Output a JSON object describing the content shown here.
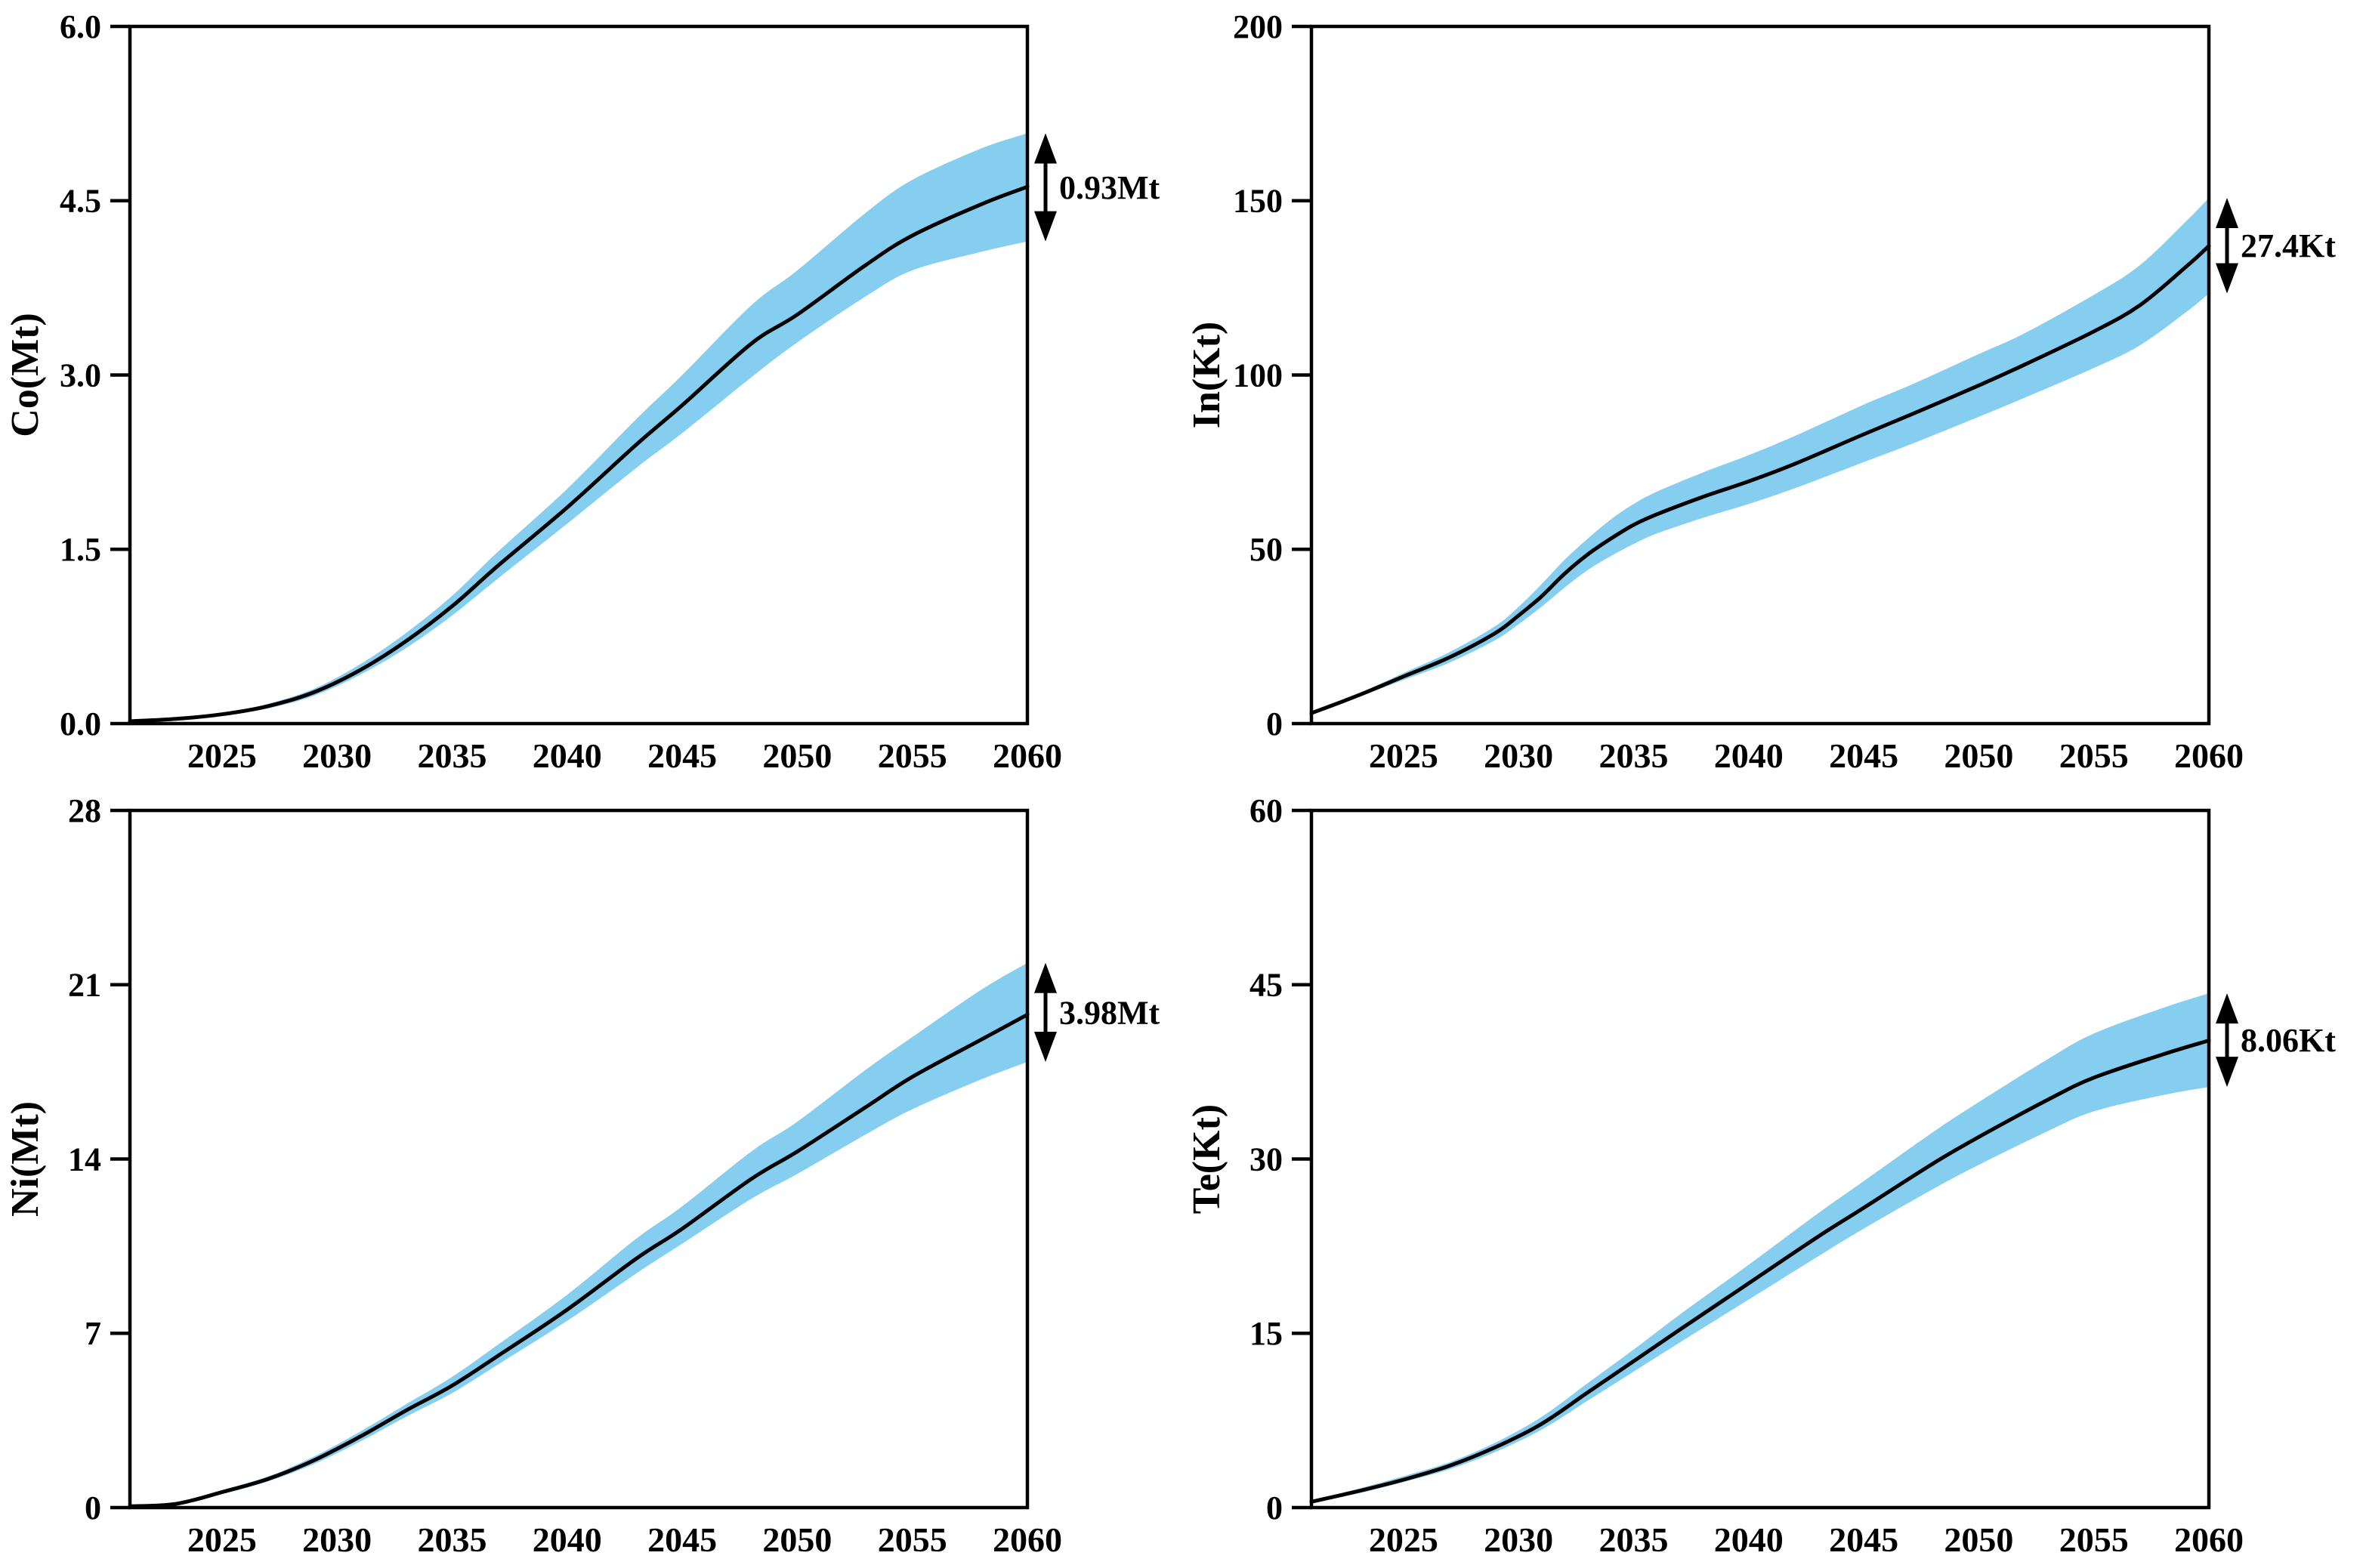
{
  "figure": {
    "kind": "2x2 panel projection figure",
    "background": "#ffffff"
  },
  "colors": {
    "band": "#86CEF0",
    "line": "#000000",
    "axis": "#000000",
    "text": "#000000"
  },
  "chart_data": [
    {
      "id": "co",
      "type": "area",
      "title": "",
      "xlabel": "",
      "ylabel": "Co(Mt)",
      "x_domain": [
        2021,
        2060
      ],
      "ylim": [
        0,
        6
      ],
      "grid": "off",
      "legend": "none",
      "yticks": [
        {
          "value": 0,
          "label": "0.0"
        },
        {
          "value": 1.5,
          "label": "1.5"
        },
        {
          "value": 3,
          "label": "3.0"
        },
        {
          "value": 4.5,
          "label": "4.5"
        },
        {
          "value": 6,
          "label": "6.0"
        }
      ],
      "xticks": [
        {
          "value": 2025,
          "label": "2025"
        },
        {
          "value": 2030,
          "label": "2030"
        },
        {
          "value": 2035,
          "label": "2035"
        },
        {
          "value": 2040,
          "label": "2040"
        },
        {
          "value": 2045,
          "label": "2045"
        },
        {
          "value": 2050,
          "label": "2050"
        },
        {
          "value": 2055,
          "label": "2055"
        },
        {
          "value": 2060,
          "label": "2060"
        }
      ],
      "annotation": {
        "label": "0.93Mt",
        "at_year": 2060,
        "low": 4.15,
        "high": 5.08
      },
      "series": [
        {
          "name": "uncertainty-band",
          "role": "band",
          "x": [
            2021,
            2023,
            2025,
            2027,
            2029,
            2031,
            2033,
            2035,
            2037,
            2040,
            2043,
            2045,
            2048,
            2050,
            2053,
            2055,
            2058,
            2060
          ],
          "y_low": [
            0.01,
            0.03,
            0.07,
            0.13,
            0.24,
            0.42,
            0.65,
            0.93,
            1.25,
            1.72,
            2.2,
            2.5,
            2.98,
            3.28,
            3.68,
            3.9,
            4.06,
            4.15
          ],
          "y_high": [
            0.03,
            0.05,
            0.09,
            0.17,
            0.3,
            0.51,
            0.78,
            1.1,
            1.48,
            2.02,
            2.62,
            3.0,
            3.6,
            3.9,
            4.4,
            4.68,
            4.95,
            5.08
          ]
        },
        {
          "name": "median-projection",
          "role": "line",
          "x": [
            2021,
            2023,
            2025,
            2027,
            2029,
            2031,
            2033,
            2035,
            2037,
            2040,
            2043,
            2045,
            2048,
            2050,
            2053,
            2055,
            2058,
            2060
          ],
          "y": [
            0.02,
            0.04,
            0.08,
            0.15,
            0.27,
            0.46,
            0.71,
            1.01,
            1.36,
            1.86,
            2.4,
            2.74,
            3.27,
            3.52,
            3.95,
            4.2,
            4.47,
            4.62
          ]
        }
      ]
    },
    {
      "id": "in",
      "type": "area",
      "title": "",
      "xlabel": "",
      "ylabel": "In(Kt)",
      "x_domain": [
        2021,
        2060
      ],
      "ylim": [
        0,
        200
      ],
      "grid": "off",
      "legend": "none",
      "yticks": [
        {
          "value": 0,
          "label": "0"
        },
        {
          "value": 50,
          "label": "50"
        },
        {
          "value": 100,
          "label": "100"
        },
        {
          "value": 150,
          "label": "150"
        },
        {
          "value": 200,
          "label": "200"
        }
      ],
      "xticks": [
        {
          "value": 2025,
          "label": "2025"
        },
        {
          "value": 2030,
          "label": "2030"
        },
        {
          "value": 2035,
          "label": "2035"
        },
        {
          "value": 2040,
          "label": "2040"
        },
        {
          "value": 2045,
          "label": "2045"
        },
        {
          "value": 2050,
          "label": "2050"
        },
        {
          "value": 2055,
          "label": "2055"
        },
        {
          "value": 2060,
          "label": "2060"
        }
      ],
      "annotation": {
        "label": "27.4Kt",
        "at_year": 2060,
        "low": 123.4,
        "high": 150.8
      },
      "series": [
        {
          "name": "uncertainty-band",
          "role": "band",
          "x": [
            2021,
            2023,
            2025,
            2027,
            2029,
            2030,
            2031,
            2032,
            2033,
            2034,
            2035,
            2036,
            2038,
            2040,
            2042,
            2045,
            2047,
            2050,
            2052,
            2055,
            2057,
            2059,
            2060
          ],
          "y_low": [
            2.8,
            7.5,
            12.5,
            17.5,
            24,
            28.5,
            33.5,
            39,
            44,
            48,
            51.5,
            54.5,
            59,
            63,
            67.5,
            75,
            80,
            88,
            93.5,
            102,
            108.5,
            118,
            123.4
          ],
          "y_high": [
            3.2,
            8.5,
            14.5,
            20.5,
            28,
            33.5,
            40,
            47,
            53,
            58.5,
            63,
            66.5,
            72,
            77,
            82.5,
            91.5,
            97,
            106,
            112,
            123,
            131.5,
            144,
            150.8
          ]
        },
        {
          "name": "median-projection",
          "role": "line",
          "x": [
            2021,
            2023,
            2025,
            2027,
            2029,
            2030,
            2031,
            2032,
            2033,
            2034,
            2035,
            2036,
            2038,
            2040,
            2042,
            2045,
            2047,
            2050,
            2052,
            2055,
            2057,
            2059,
            2060
          ],
          "y": [
            3,
            8,
            13.5,
            19,
            26,
            31,
            36.5,
            43,
            48.5,
            53,
            57,
            60,
            65,
            69.5,
            74.5,
            83,
            88.5,
            97,
            103,
            112.5,
            120,
            131,
            137
          ]
        }
      ]
    },
    {
      "id": "ni",
      "type": "area",
      "title": "",
      "xlabel": "",
      "ylabel": "Ni(Mt)",
      "x_domain": [
        2021,
        2060
      ],
      "ylim": [
        0,
        28
      ],
      "grid": "off",
      "legend": "none",
      "yticks": [
        {
          "value": 0,
          "label": "0"
        },
        {
          "value": 7,
          "label": "7"
        },
        {
          "value": 14,
          "label": "14"
        },
        {
          "value": 21,
          "label": "21"
        },
        {
          "value": 28,
          "label": "28"
        }
      ],
      "xticks": [
        {
          "value": 2025,
          "label": "2025"
        },
        {
          "value": 2030,
          "label": "2030"
        },
        {
          "value": 2035,
          "label": "2035"
        },
        {
          "value": 2040,
          "label": "2040"
        },
        {
          "value": 2045,
          "label": "2045"
        },
        {
          "value": 2050,
          "label": "2050"
        },
        {
          "value": 2055,
          "label": "2055"
        },
        {
          "value": 2060,
          "label": "2060"
        }
      ],
      "annotation": {
        "label": "3.98Mt",
        "at_year": 2060,
        "low": 17.9,
        "high": 21.88
      },
      "series": [
        {
          "name": "uncertainty-band",
          "role": "band",
          "x": [
            2021,
            2023,
            2025,
            2027,
            2029,
            2031,
            2033,
            2035,
            2037,
            2040,
            2043,
            2045,
            2048,
            2050,
            2053,
            2055,
            2058,
            2060
          ],
          "y_low": [
            0.03,
            0.12,
            0.55,
            1.05,
            1.75,
            2.65,
            3.65,
            4.6,
            5.75,
            7.5,
            9.4,
            10.6,
            12.4,
            13.4,
            15.0,
            16.0,
            17.2,
            17.9
          ],
          "y_high": [
            0.07,
            0.18,
            0.7,
            1.25,
            2.05,
            3.05,
            4.15,
            5.25,
            6.55,
            8.55,
            10.8,
            12.1,
            14.3,
            15.5,
            17.6,
            18.9,
            20.8,
            21.88
          ]
        },
        {
          "name": "median-projection",
          "role": "line",
          "x": [
            2021,
            2023,
            2025,
            2027,
            2029,
            2031,
            2033,
            2035,
            2037,
            2040,
            2043,
            2045,
            2048,
            2050,
            2053,
            2055,
            2058,
            2060
          ],
          "y": [
            0.05,
            0.15,
            0.62,
            1.15,
            1.9,
            2.85,
            3.9,
            4.9,
            6.1,
            7.95,
            10.0,
            11.2,
            13.2,
            14.3,
            16.1,
            17.3,
            18.8,
            19.8
          ]
        }
      ]
    },
    {
      "id": "te",
      "type": "area",
      "title": "",
      "xlabel": "",
      "ylabel": "Te(Kt)",
      "x_domain": [
        2021,
        2060
      ],
      "ylim": [
        0,
        60
      ],
      "grid": "off",
      "legend": "none",
      "yticks": [
        {
          "value": 0,
          "label": "0"
        },
        {
          "value": 15,
          "label": "15"
        },
        {
          "value": 30,
          "label": "30"
        },
        {
          "value": 45,
          "label": "45"
        },
        {
          "value": 60,
          "label": "60"
        }
      ],
      "xticks": [
        {
          "value": 2025,
          "label": "2025"
        },
        {
          "value": 2030,
          "label": "2030"
        },
        {
          "value": 2035,
          "label": "2035"
        },
        {
          "value": 2040,
          "label": "2040"
        },
        {
          "value": 2045,
          "label": "2045"
        },
        {
          "value": 2050,
          "label": "2050"
        },
        {
          "value": 2055,
          "label": "2055"
        },
        {
          "value": 2060,
          "label": "2060"
        }
      ],
      "annotation": {
        "label": "8.06Kt",
        "at_year": 2060,
        "low": 36.2,
        "high": 44.26
      },
      "series": [
        {
          "name": "uncertainty-band",
          "role": "band",
          "x": [
            2021,
            2023,
            2025,
            2027,
            2029,
            2031,
            2033,
            2035,
            2037,
            2040,
            2043,
            2045,
            2048,
            2050,
            2053,
            2055,
            2058,
            2060
          ],
          "y_low": [
            0.4,
            1.2,
            2.2,
            3.3,
            4.8,
            6.7,
            9.2,
            11.7,
            14.2,
            17.9,
            21.6,
            24.0,
            27.4,
            29.5,
            32.4,
            34.1,
            35.5,
            36.2
          ],
          "y_high": [
            0.6,
            1.6,
            2.7,
            3.9,
            5.6,
            7.8,
            10.7,
            13.6,
            16.6,
            20.9,
            25.3,
            28.1,
            32.3,
            34.9,
            38.6,
            40.8,
            43.0,
            44.26
          ]
        },
        {
          "name": "median-projection",
          "role": "line",
          "x": [
            2021,
            2023,
            2025,
            2027,
            2029,
            2031,
            2033,
            2035,
            2037,
            2040,
            2043,
            2045,
            2048,
            2050,
            2053,
            2055,
            2058,
            2060
          ],
          "y": [
            0.5,
            1.4,
            2.4,
            3.6,
            5.2,
            7.2,
            9.9,
            12.6,
            15.3,
            19.3,
            23.3,
            25.8,
            29.6,
            31.9,
            35.1,
            37.0,
            39.0,
            40.2
          ]
        }
      ]
    }
  ]
}
